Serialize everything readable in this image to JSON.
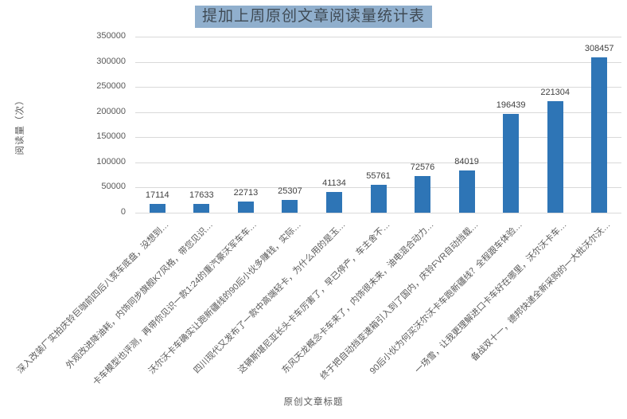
{
  "chart_data": {
    "type": "bar",
    "title": "提加上周原创文章阅读量统计表",
    "xlabel": "原创文章标题",
    "ylabel": "阅读量（次）",
    "categories": [
      "深入改装厂实拍庆铃巨咖前四后八泵车底盘，没想到…",
      "外观改进降油耗，内饰同步旗舰K7风格，带您见识…",
      "卡车模型也评测，再带你见识一款1:24的重汽豪沃军车车…",
      "沃尔沃卡车确实让跑新疆线的90后小伙多赚钱，实际…",
      "四川现代又发布了一款中高端轻卡，为什么用的是玉…",
      "这辆斯堪尼亚长头卡车厉害了，早已停产，车主舍不…",
      "东风天龙概念卡车来了，内饰很未来，油电混合动力…",
      "终于把自动挡变速箱引入到了国内，庆铃FVR自动挡载…",
      "90后小伙为何买沃尔沃卡车跑新疆线？全程跟车体验…",
      "一场雪，让我更理解进口卡车好在哪里，沃尔沃卡车…",
      "备战双十一，德邦快递全新采购的一大批沃尔沃…"
    ],
    "values": [
      17114,
      17633,
      22713,
      25307,
      41134,
      55761,
      72576,
      84019,
      196439,
      221304,
      308457
    ],
    "ylim": [
      0,
      350000
    ],
    "ytick_step": 50000,
    "yticks": [
      "0",
      "50000",
      "100000",
      "150000",
      "200000",
      "250000",
      "300000",
      "350000"
    ],
    "grid": true,
    "legend_position": "none",
    "data_labels_shown": true,
    "category_rotation_deg": 45
  },
  "colors": {
    "bar": "#2E75B6",
    "title_text": "#3F4A54",
    "title_highlight": "#90AFCD",
    "gridline": "#D9D9D9",
    "axis_line": "#D9D9D9",
    "tick_label": "#595959",
    "category_label": "#595959",
    "data_label": "#404040",
    "axis_title": "#595959",
    "background": "#FFFFFF"
  }
}
